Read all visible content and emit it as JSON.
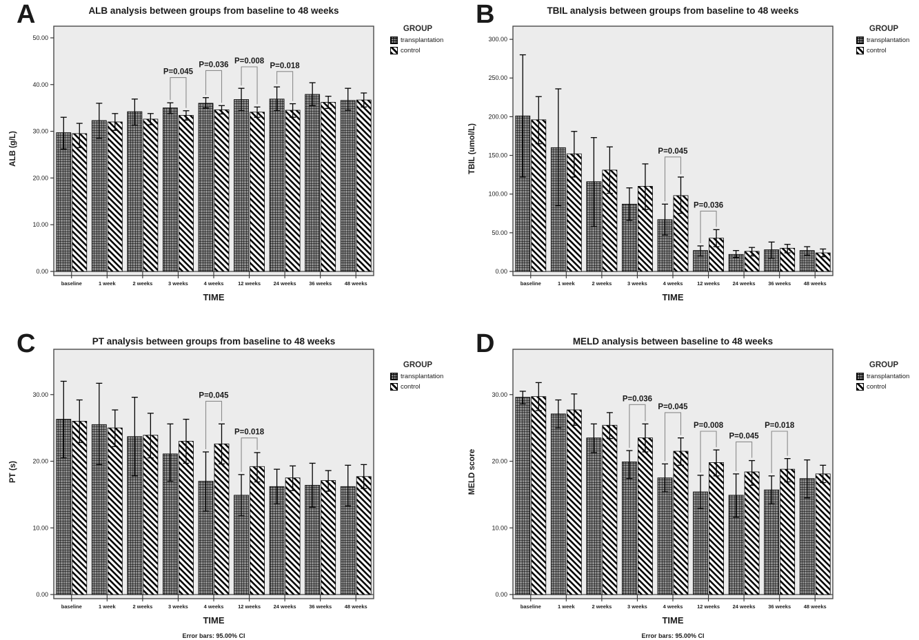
{
  "legend": {
    "title": "GROUP",
    "items": [
      {
        "label": "transplantation",
        "swatch": "crosshatch-icon"
      },
      {
        "label": "control",
        "swatch": "diagonal-icon"
      }
    ]
  },
  "chart_data": [
    {
      "type": "bar",
      "panel": "A",
      "title": "ALB analysis between groups from baseline to 48 weeks",
      "xlabel": "TIME",
      "ylabel": "ALB (g/L)",
      "ylim": [
        0,
        52.5
      ],
      "yticks": [
        0,
        10,
        20,
        30,
        40,
        50
      ],
      "ytick_labels": [
        "0.00",
        "10.00",
        "20.00",
        "30.00",
        "40.00",
        "50.00"
      ],
      "categories": [
        "baseline",
        "1 week",
        "2 weeks",
        "3 weeks",
        "4 weeks",
        "12 weeks",
        "24 weeks",
        "36 weeks",
        "48 weeks"
      ],
      "grid": false,
      "legend_position": "right",
      "error_bars": "95.00% CI",
      "footnote": null,
      "series": [
        {
          "name": "transplantation",
          "pattern": "crosshatch",
          "values": [
            29.7,
            32.3,
            34.2,
            35.0,
            36.0,
            36.8,
            36.9,
            37.9,
            36.6
          ],
          "ci_low": [
            26.2,
            28.5,
            31.3,
            33.8,
            35.0,
            34.4,
            34.4,
            35.5,
            34.5
          ],
          "ci_high": [
            33.0,
            36.0,
            36.9,
            36.1,
            37.2,
            39.2,
            39.5,
            40.4,
            39.2
          ]
        },
        {
          "name": "control",
          "pattern": "diagonal",
          "values": [
            29.5,
            32.0,
            32.6,
            33.4,
            34.6,
            34.1,
            34.5,
            36.2,
            36.7
          ],
          "ci_low": [
            26.5,
            30.2,
            31.4,
            32.4,
            33.7,
            33.0,
            33.0,
            34.9,
            35.2
          ],
          "ci_high": [
            31.7,
            33.8,
            33.8,
            34.4,
            35.5,
            35.2,
            35.9,
            37.5,
            38.2
          ]
        }
      ],
      "annotations": [
        {
          "label": "P=0.045",
          "category": "3 weeks",
          "index": 3,
          "top": 41.5
        },
        {
          "label": "P=0.036",
          "category": "4 weeks",
          "index": 4,
          "top": 43.0
        },
        {
          "label": "P=0.008",
          "category": "12 weeks",
          "index": 5,
          "top": 43.8
        },
        {
          "label": "P=0.018",
          "category": "24 weeks",
          "index": 6,
          "top": 42.8
        }
      ]
    },
    {
      "type": "bar",
      "panel": "B",
      "title": "TBIL analysis between groups from baseline to 48 weeks",
      "xlabel": "TIME",
      "ylabel": "TBIL (umol/L)",
      "ylim": [
        0,
        317
      ],
      "yticks": [
        0,
        50,
        100,
        150,
        200,
        250,
        300
      ],
      "ytick_labels": [
        "0.00",
        "50.00",
        "100.00",
        "150.00",
        "200.00",
        "250.00",
        "300.00"
      ],
      "categories": [
        "baseline",
        "1 week",
        "2 weeks",
        "3 weeks",
        "4 weeks",
        "12 weeks",
        "24 weeks",
        "36 weeks",
        "48 weeks"
      ],
      "grid": false,
      "legend_position": "right",
      "error_bars": "95.00% CI",
      "footnote": null,
      "series": [
        {
          "name": "transplantation",
          "pattern": "crosshatch",
          "values": [
            201,
            160,
            116,
            87,
            67,
            27,
            22,
            28,
            27
          ],
          "ci_low": [
            122,
            85,
            58,
            66,
            47,
            20,
            18,
            17,
            21
          ],
          "ci_high": [
            280,
            236,
            173,
            108,
            87,
            33,
            27,
            38,
            32
          ]
        },
        {
          "name": "control",
          "pattern": "diagonal",
          "values": [
            196,
            152,
            131,
            110,
            98,
            43,
            26,
            30,
            24
          ],
          "ci_low": [
            165,
            122,
            101,
            80,
            75,
            32,
            20,
            24,
            19
          ],
          "ci_high": [
            226,
            181,
            161,
            139,
            122,
            54,
            31,
            35,
            29
          ]
        }
      ],
      "annotations": [
        {
          "label": "P=0.045",
          "category": "4 weeks",
          "index": 4,
          "top": 148
        },
        {
          "label": "P=0.036",
          "category": "12 weeks",
          "index": 5,
          "top": 78
        }
      ]
    },
    {
      "type": "bar",
      "panel": "C",
      "title": "PT analysis between groups from baseline to 48 weeks",
      "xlabel": "TIME",
      "ylabel": "PT (s)",
      "ylim": [
        0,
        36.8
      ],
      "yticks": [
        0,
        10,
        20,
        30
      ],
      "ytick_labels": [
        "0.00",
        "10.00",
        "20.00",
        "30.00"
      ],
      "categories": [
        "baseline",
        "1 week",
        "2 weeks",
        "3 weeks",
        "4 weeks",
        "12 weeks",
        "24 weeks",
        "36 weeks",
        "48 weeks"
      ],
      "grid": false,
      "legend_position": "right",
      "error_bars": "95.00% CI",
      "footnote": "Error bars: 95.00% CI",
      "series": [
        {
          "name": "transplantation",
          "pattern": "crosshatch",
          "values": [
            26.3,
            25.5,
            23.7,
            21.1,
            17.0,
            14.9,
            16.2,
            16.4,
            16.2
          ],
          "ci_low": [
            20.5,
            19.5,
            17.8,
            17.0,
            12.5,
            11.8,
            13.6,
            13.1,
            13.3
          ],
          "ci_high": [
            32.0,
            31.7,
            29.6,
            25.6,
            21.4,
            18.0,
            18.8,
            19.7,
            19.4
          ]
        },
        {
          "name": "control",
          "pattern": "diagonal",
          "values": [
            26.0,
            25.0,
            23.9,
            23.0,
            22.6,
            19.2,
            17.5,
            17.1,
            17.7
          ],
          "ci_low": [
            22.8,
            22.2,
            20.5,
            19.7,
            19.6,
            16.9,
            15.6,
            15.5,
            15.9
          ],
          "ci_high": [
            29.2,
            27.7,
            27.2,
            26.3,
            25.6,
            21.3,
            19.3,
            18.6,
            19.5
          ]
        }
      ],
      "annotations": [
        {
          "label": "P=0.045",
          "category": "4 weeks",
          "index": 4,
          "top": 29.0
        },
        {
          "label": "P=0.018",
          "category": "12 weeks",
          "index": 5,
          "top": 23.5
        }
      ]
    },
    {
      "type": "bar",
      "panel": "D",
      "title": "MELD analysis between baseline to 48 weeks",
      "xlabel": "TIME",
      "ylabel": "MELD score",
      "ylim": [
        0,
        36.8
      ],
      "yticks": [
        0,
        10,
        20,
        30
      ],
      "ytick_labels": [
        "0.00",
        "10.00",
        "20.00",
        "30.00"
      ],
      "categories": [
        "baseline",
        "1 week",
        "2 weeks",
        "3 weeks",
        "4 weeks",
        "12 weeks",
        "24 weeks",
        "36 weeks",
        "48 weeks"
      ],
      "grid": false,
      "legend_position": "right",
      "error_bars": "95.00% CI",
      "footnote": "Error bars: 95.00% CI",
      "series": [
        {
          "name": "transplantation",
          "pattern": "crosshatch",
          "values": [
            29.6,
            27.1,
            23.5,
            19.9,
            17.5,
            15.4,
            14.9,
            15.7,
            17.4
          ],
          "ci_low": [
            28.6,
            25.0,
            21.3,
            17.4,
            15.4,
            12.9,
            11.6,
            13.6,
            14.5
          ],
          "ci_high": [
            30.5,
            29.2,
            25.6,
            21.6,
            19.6,
            17.9,
            18.1,
            17.8,
            20.2
          ]
        },
        {
          "name": "control",
          "pattern": "diagonal",
          "values": [
            29.7,
            27.7,
            25.4,
            23.5,
            21.5,
            19.8,
            18.4,
            18.8,
            18.1
          ],
          "ci_low": [
            27.6,
            25.4,
            23.4,
            21.4,
            19.4,
            17.8,
            16.4,
            16.9,
            16.8
          ],
          "ci_high": [
            31.8,
            30.1,
            27.3,
            25.6,
            23.5,
            21.7,
            20.1,
            20.4,
            19.4
          ]
        }
      ],
      "annotations": [
        {
          "label": "P=0.036",
          "category": "3 weeks",
          "index": 3,
          "top": 28.5
        },
        {
          "label": "P=0.045",
          "category": "4 weeks",
          "index": 4,
          "top": 27.3
        },
        {
          "label": "P=0.008",
          "category": "12 weeks",
          "index": 5,
          "top": 24.5
        },
        {
          "label": "P=0.045",
          "category": "24 weeks",
          "index": 6,
          "top": 22.9
        },
        {
          "label": "P=0.018",
          "category": "36 weeks",
          "index": 7,
          "top": 24.5
        }
      ]
    }
  ]
}
